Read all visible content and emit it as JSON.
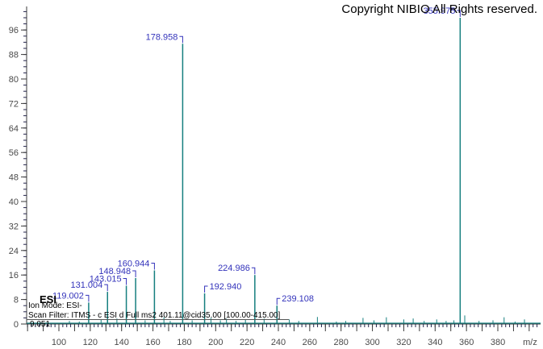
{
  "copyright": "Copyright NIBIO All Rights reserved.",
  "info": {
    "title": "ESI",
    "ion_mode": "Ion Mode: ESI-",
    "scan_filter": "Scan Filter: ITMS - c ESI d Full ms2 401.11@cid35.00 [100.00-415.00]",
    "retention_time": "9.051"
  },
  "colors": {
    "peak": "#157f7f",
    "peak_label": "#3333bb",
    "axis_line": "#3a3a3a",
    "minor_tick": "#23234a",
    "tick_label": "#4a4a4a",
    "baseline": "#157f7f"
  },
  "chart_data": {
    "type": "bar",
    "subtype": "mass-spectrum-stick-plot",
    "title": "",
    "xlabel": "m/z",
    "ylabel": "",
    "x_axis": {
      "min": 80,
      "max": 405,
      "label_min": 100,
      "label_max": 380,
      "label_step": 20,
      "major_tick_step": 10,
      "minor_tick_step": 2.5
    },
    "y_axis": {
      "min": 0,
      "max": 104,
      "label_min": 0,
      "label_max": 96,
      "label_step": 8,
      "minor_tick_step": 2
    },
    "grid": false,
    "legend": false,
    "peaks": [
      {
        "mz": 119.002,
        "intensity": 7,
        "label": "119.002",
        "label_side": "right"
      },
      {
        "mz": 131.004,
        "intensity": 10.5,
        "label": "131.004",
        "label_side": "right"
      },
      {
        "mz": 143.015,
        "intensity": 12.5,
        "label": "143.015",
        "label_side": "right"
      },
      {
        "mz": 148.948,
        "intensity": 15,
        "label": "148.948",
        "label_side": "right"
      },
      {
        "mz": 160.944,
        "intensity": 17.5,
        "label": "160.944",
        "label_side": "right"
      },
      {
        "mz": 178.958,
        "intensity": 91.5,
        "label": "178.958",
        "label_side": "right"
      },
      {
        "mz": 192.94,
        "intensity": 10,
        "label": "192.940",
        "label_side": "left"
      },
      {
        "mz": 224.986,
        "intensity": 16,
        "label": "224.986",
        "label_side": "right"
      },
      {
        "mz": 239.108,
        "intensity": 6,
        "label": "239.108",
        "label_side": "left"
      },
      {
        "mz": 355.975,
        "intensity": 100,
        "label": "355.975",
        "label_side": "right"
      }
    ],
    "noise_peaks": [
      [
        106.7,
        1.0
      ],
      [
        113,
        0.8
      ],
      [
        126.9,
        1.5
      ],
      [
        137,
        1.8
      ],
      [
        155,
        1.2
      ],
      [
        167,
        2.2
      ],
      [
        171,
        1.0
      ],
      [
        185,
        1.2
      ],
      [
        197,
        2.0
      ],
      [
        203,
        1.2
      ],
      [
        206.9,
        1.8
      ],
      [
        213,
        1.0
      ],
      [
        219,
        1.5
      ],
      [
        230.9,
        1.8
      ],
      [
        247,
        1.5
      ],
      [
        253,
        1.0
      ],
      [
        264.9,
        2.3
      ],
      [
        277,
        0.8
      ],
      [
        283,
        1.0
      ],
      [
        294,
        2.0
      ],
      [
        301,
        1.2
      ],
      [
        308.9,
        2.2
      ],
      [
        320,
        1.5
      ],
      [
        326,
        1.8
      ],
      [
        333,
        1.0
      ],
      [
        341,
        1.5
      ],
      [
        347,
        1.0
      ],
      [
        352,
        1.2
      ],
      [
        358.9,
        2.8
      ],
      [
        368,
        1.0
      ],
      [
        376.9,
        1.2
      ],
      [
        384,
        2.2
      ],
      [
        391,
        0.8
      ],
      [
        397,
        1.5
      ]
    ]
  }
}
